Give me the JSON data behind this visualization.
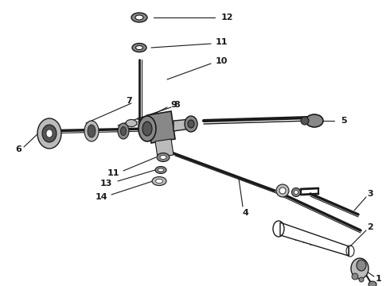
{
  "bg_color": "#ffffff",
  "lc": "#1a1a1a",
  "gray1": "#888888",
  "gray2": "#555555",
  "gray3": "#bbbbbb",
  "fig_width": 4.9,
  "fig_height": 3.6,
  "dpi": 100,
  "xlim": [
    0,
    490
  ],
  "ylim": [
    0,
    360
  ]
}
